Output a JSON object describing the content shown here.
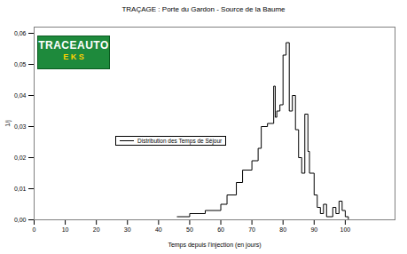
{
  "chart_data": {
    "type": "line",
    "title": "TRAÇAGE : Porte du Gardon - Source de la Baume",
    "x_label": "Temps depuis l'injection (en jours)",
    "y_label": "1/j",
    "annotations": [
      "TRACEAUTO",
      "E K S"
    ],
    "x": [
      46,
      50,
      55,
      60,
      62,
      65,
      67,
      70,
      72,
      73,
      75,
      77,
      77.5,
      78,
      79,
      80,
      81,
      82,
      83,
      84,
      85,
      86,
      87,
      88,
      88.5,
      90,
      91,
      92,
      93,
      94,
      96,
      97,
      98,
      99,
      100,
      101
    ],
    "series": [
      {
        "name": "Distribution des Temps de Séjour",
        "color": "#000000",
        "line_style": "step",
        "values": [
          0.001,
          0.002,
          0.003,
          0.005,
          0.008,
          0.012,
          0.016,
          0.019,
          0.023,
          0.03,
          0.031,
          0.043,
          0.033,
          0.035,
          0.037,
          0.053,
          0.057,
          0.035,
          0.04,
          0.029,
          0.02,
          0.015,
          0.034,
          0.022,
          0.015,
          0.008,
          0.004,
          0.002,
          0.005,
          0.001,
          0.004,
          0.002,
          0.006,
          0.003,
          0.001,
          0
        ]
      }
    ],
    "xlim": [
      0,
      116
    ],
    "xticks": [
      0,
      10,
      20,
      30,
      40,
      50,
      60,
      70,
      80,
      90,
      100
    ],
    "ylim": [
      0,
      0.062
    ],
    "yticks": [
      {
        "value": 0,
        "label": "0,00"
      },
      {
        "value": 0.01,
        "label": "0,01"
      },
      {
        "value": 0.02,
        "label": "0,02"
      },
      {
        "value": 0.03,
        "label": "0,03"
      },
      {
        "value": 0.04,
        "label": "0,04"
      },
      {
        "value": 0.05,
        "label": "0,05"
      },
      {
        "value": 0.06,
        "label": "0,06"
      }
    ],
    "legend": "left"
  }
}
